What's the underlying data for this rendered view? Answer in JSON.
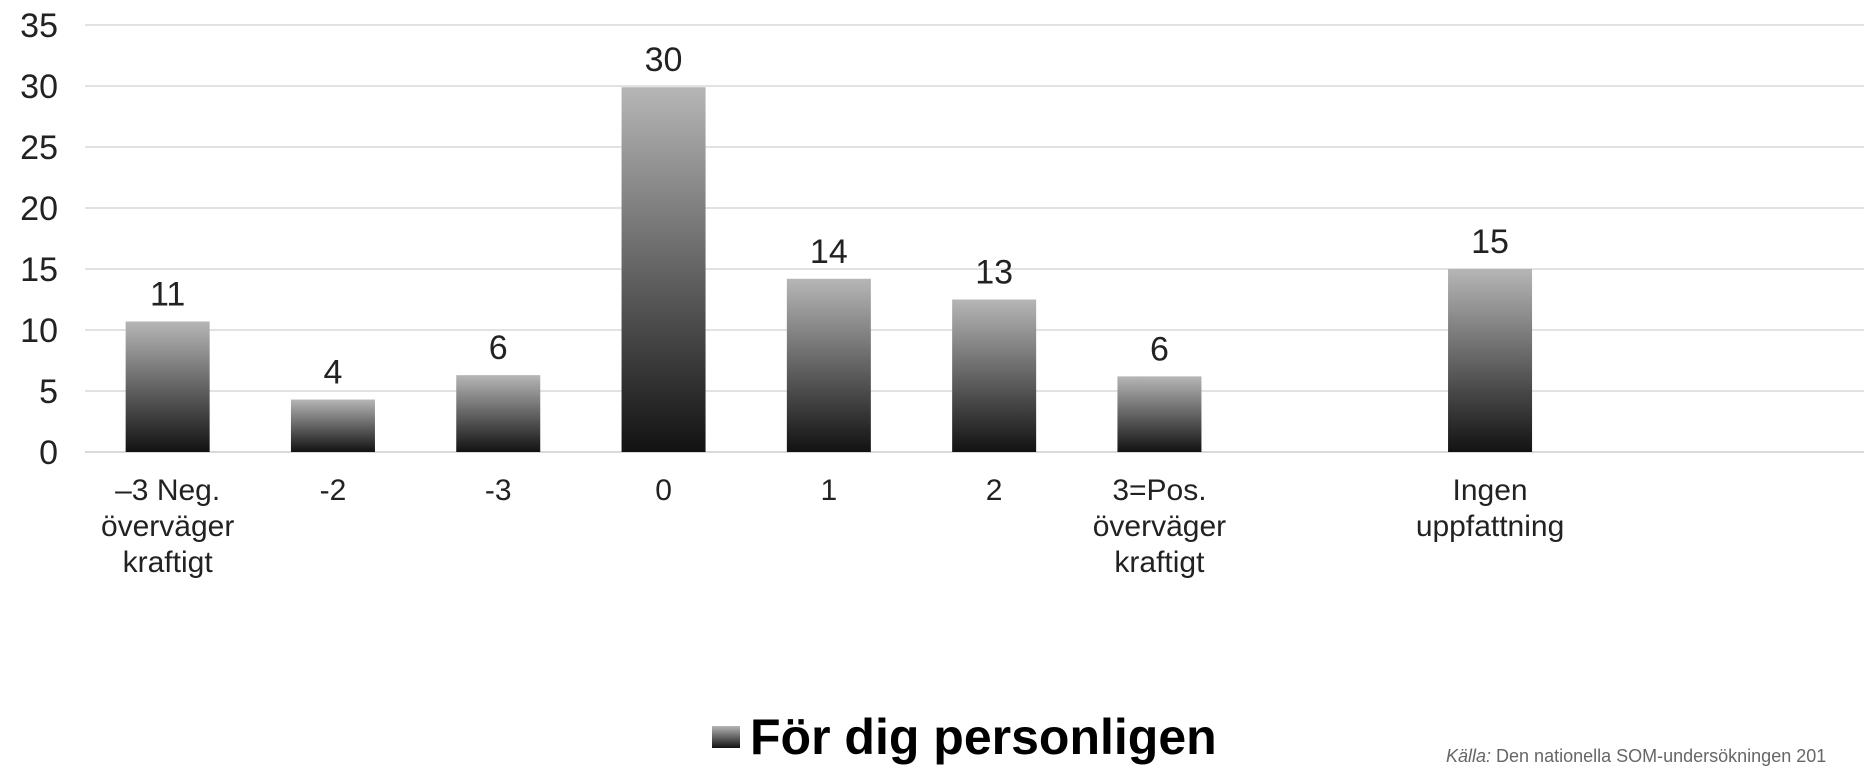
{
  "chart_data": {
    "type": "bar",
    "categories": [
      [
        "–3 Neg.",
        "överväger",
        "kraftigt"
      ],
      [
        "-2"
      ],
      [
        "-3"
      ],
      [
        "0"
      ],
      [
        "1"
      ],
      [
        "2"
      ],
      [
        "3=Pos.",
        "överväger",
        "kraftigt"
      ],
      [],
      [
        "Ingen",
        "uppfattning"
      ]
    ],
    "values": [
      11,
      4,
      6,
      30,
      14,
      13,
      6,
      null,
      15
    ],
    "plotted_values": [
      10.7,
      4.3,
      6.3,
      29.9,
      14.2,
      12.5,
      6.2,
      null,
      15.0
    ],
    "series": [
      {
        "name": "För dig personligen",
        "values": [
          11,
          4,
          6,
          30,
          14,
          13,
          6,
          null,
          15
        ]
      }
    ],
    "ylim": [
      0,
      35
    ],
    "yticks": [
      "0",
      "5",
      "10",
      "15",
      "20",
      "25",
      "30",
      "35"
    ],
    "grid": true,
    "legend": "bottom",
    "xlabel": "",
    "ylabel": ""
  },
  "legend": {
    "label": "För dig personligen"
  },
  "source": {
    "key": "Källa:",
    "text": " Den nationella SOM-undersökningen 201"
  },
  "colors": {
    "bar_top": "#b6b6b6",
    "bar_bottom": "#121212",
    "grid": "#d9d9d9",
    "text": "#222222"
  }
}
